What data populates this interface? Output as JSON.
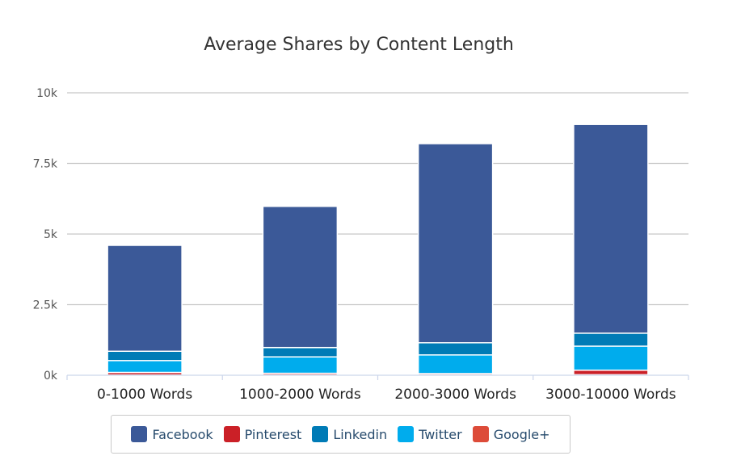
{
  "chart_data": {
    "type": "bar",
    "stacked": true,
    "title": "Average Shares by Content Length",
    "xlabel": "",
    "ylabel": "",
    "ylim": [
      0,
      10000
    ],
    "y_ticks": [
      "0k",
      "2.5k",
      "5k",
      "7.5k",
      "10k"
    ],
    "y_tick_values": [
      0,
      2500,
      5000,
      7500,
      10000
    ],
    "grid": true,
    "legend_position": "bottom",
    "categories": [
      "0-1000 Words",
      "1000-2000 Words",
      "2000-3000 Words",
      "3000-10000 Words"
    ],
    "series": [
      {
        "name": "Google+",
        "color": "#dd4b39",
        "values": [
          10,
          10,
          10,
          20
        ]
      },
      {
        "name": "Pinterest",
        "color": "#cb2027",
        "values": [
          90,
          60,
          50,
          160
        ]
      },
      {
        "name": "Twitter",
        "color": "#00aced",
        "values": [
          420,
          580,
          660,
          850
        ]
      },
      {
        "name": "Linkedin",
        "color": "#007bb6",
        "values": [
          330,
          330,
          430,
          460
        ]
      },
      {
        "name": "Facebook",
        "color": "#3b5998",
        "values": [
          3750,
          5000,
          7050,
          7390
        ]
      }
    ],
    "legend_order": [
      "Facebook",
      "Pinterest",
      "Linkedin",
      "Twitter",
      "Google+"
    ]
  }
}
